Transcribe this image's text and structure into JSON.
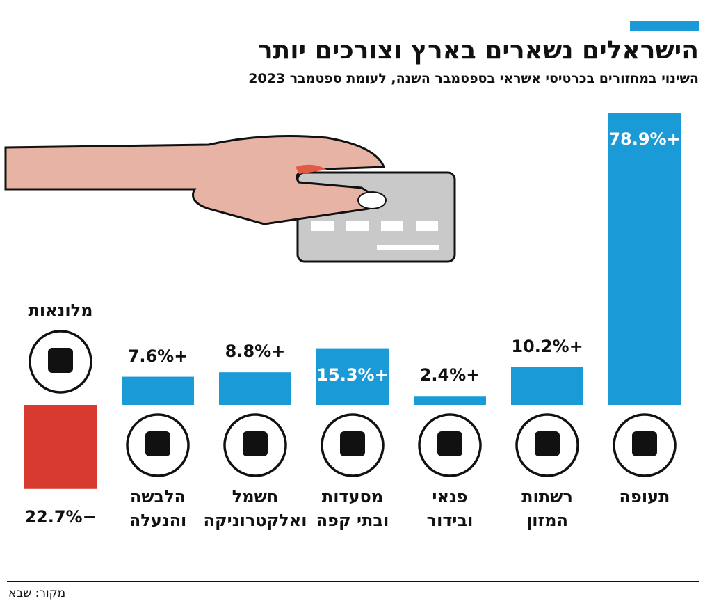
{
  "chart_data": {
    "type": "bar",
    "title": "הישראלים נשארים בארץ וצורכים יותר",
    "subtitle": "השינוי במחזורים בכרטיסי אשראי בספטמבר השנה, לעומת ספטמבר 2023",
    "categories": [
      [
        "תעופה"
      ],
      [
        "רשתות",
        "המזון"
      ],
      [
        "פנאי",
        "ובידור"
      ],
      [
        "מסעדות",
        "ובתי קפה"
      ],
      [
        "חשמל",
        "ואלקטרוניקה"
      ],
      [
        "הלבשה",
        "והנעלה"
      ],
      [
        "מלונאות"
      ]
    ],
    "values": [
      78.9,
      10.2,
      2.4,
      15.3,
      8.8,
      7.6,
      -22.7
    ],
    "value_labels": [
      "+78.9%",
      "+10.2%",
      "+2.4%",
      "+15.3%",
      "+8.8%",
      "+7.6%",
      "−22.7%"
    ],
    "color": "#1a9ad6",
    "negative_color": "#d93a30",
    "source": "מקור: שבא"
  }
}
